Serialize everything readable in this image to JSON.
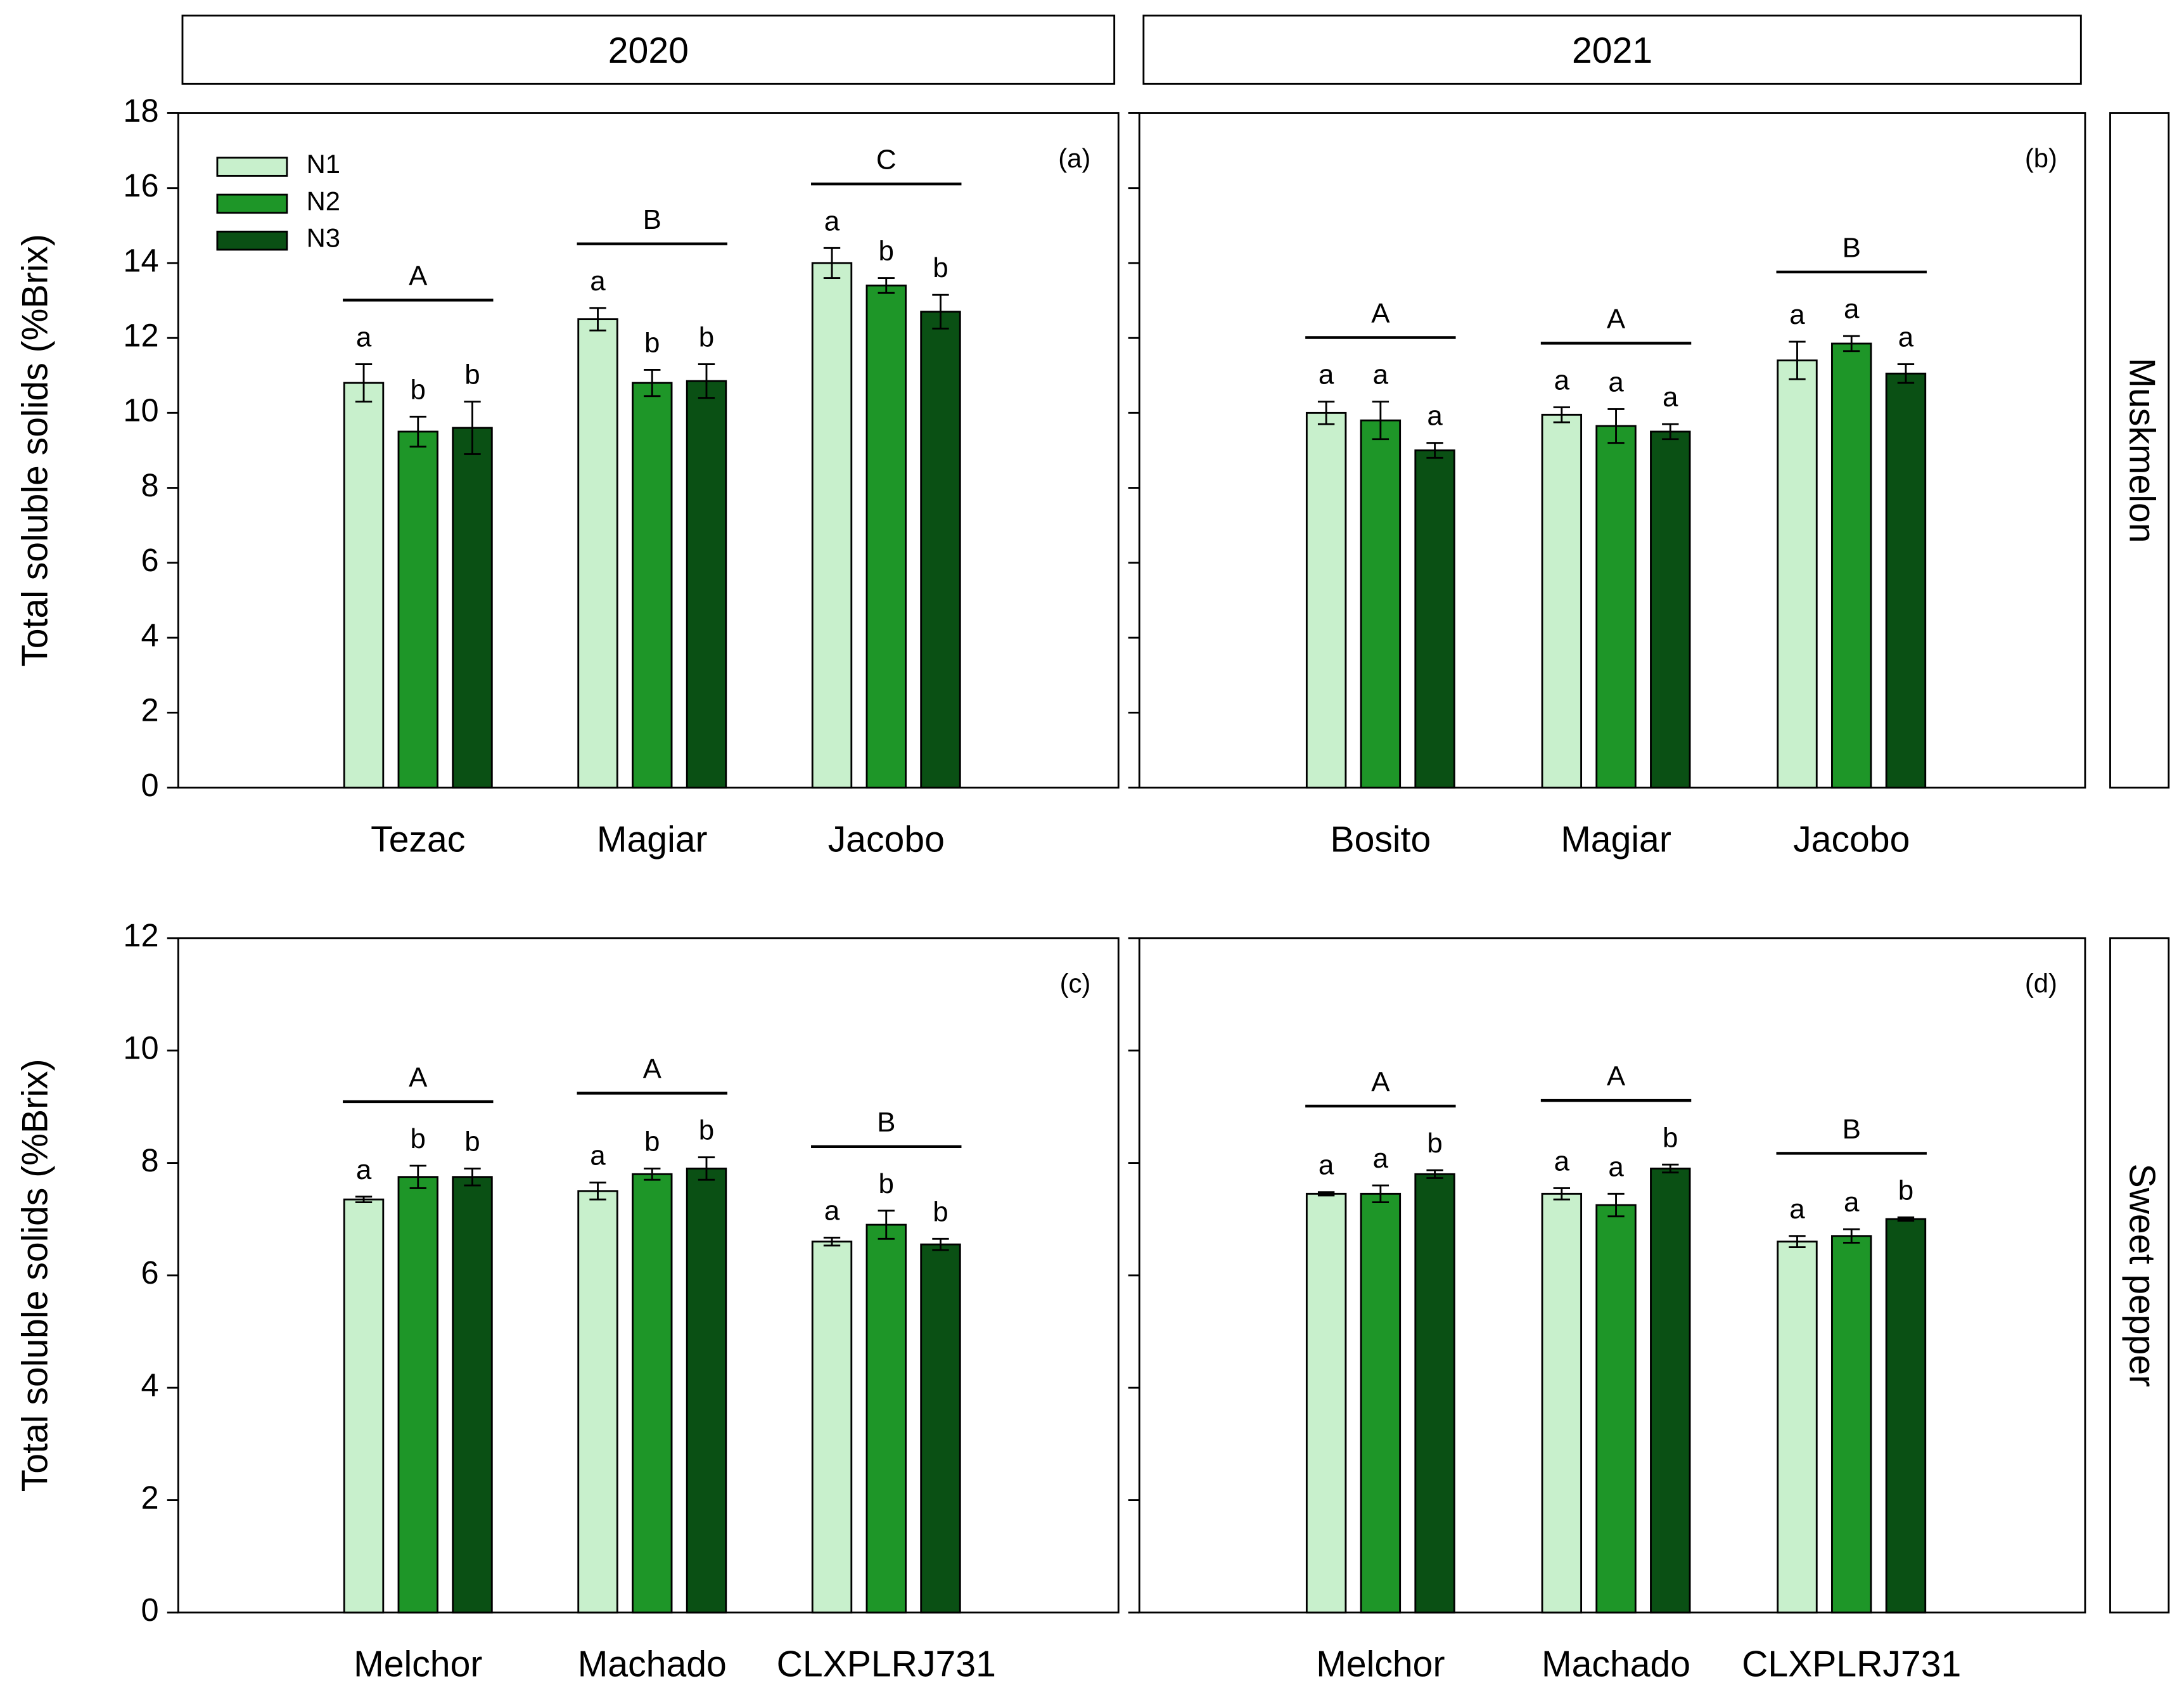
{
  "chart_data": [
    {
      "type": "bar",
      "panel_label": "(a)",
      "column_label": "2020",
      "ylabel": "Total soluble solids (%Brix)",
      "categories": [
        "Tezac",
        "Magiar",
        "Jacobo"
      ],
      "group_letters": [
        "A",
        "B",
        "C"
      ],
      "series": [
        {
          "name": "N1",
          "color": "#c8f0cc",
          "values": [
            10.8,
            12.5,
            14.0
          ],
          "errors": [
            0.5,
            0.3,
            0.4
          ],
          "letters": [
            "a",
            "a",
            "a"
          ]
        },
        {
          "name": "N2",
          "color": "#1e9628",
          "values": [
            9.5,
            10.8,
            13.4
          ],
          "errors": [
            0.4,
            0.35,
            0.2
          ],
          "letters": [
            "b",
            "b",
            "b"
          ]
        },
        {
          "name": "N3",
          "color": "#0a5014",
          "values": [
            9.6,
            10.85,
            12.7
          ],
          "errors": [
            0.7,
            0.45,
            0.45
          ],
          "letters": [
            "b",
            "b",
            "b"
          ]
        }
      ],
      "ylim": [
        0,
        18
      ],
      "yticks": [
        0,
        2,
        4,
        6,
        8,
        10,
        12,
        14,
        16,
        18
      ],
      "ytick_labels": true,
      "legend": "upper left"
    },
    {
      "type": "bar",
      "panel_label": "(b)",
      "column_label": "2021",
      "row_label": "Muskmelon",
      "categories": [
        "Bosito",
        "Magiar",
        "Jacobo"
      ],
      "group_letters": [
        "A",
        "A",
        "B"
      ],
      "series": [
        {
          "name": "N1",
          "color": "#c8f0cc",
          "values": [
            10.0,
            9.95,
            11.4
          ],
          "errors": [
            0.3,
            0.2,
            0.5
          ],
          "letters": [
            "a",
            "a",
            "a"
          ]
        },
        {
          "name": "N2",
          "color": "#1e9628",
          "values": [
            9.8,
            9.65,
            11.85
          ],
          "errors": [
            0.5,
            0.45,
            0.2
          ],
          "letters": [
            "a",
            "a",
            "a"
          ]
        },
        {
          "name": "N3",
          "color": "#0a5014",
          "values": [
            9.0,
            9.5,
            11.05
          ],
          "errors": [
            0.2,
            0.2,
            0.25
          ],
          "letters": [
            "a",
            "a",
            "a"
          ]
        }
      ],
      "ylim": [
        0,
        18
      ],
      "yticks": [
        0,
        2,
        4,
        6,
        8,
        10,
        12,
        14,
        16,
        18
      ],
      "ytick_labels": false
    },
    {
      "type": "bar",
      "panel_label": "(c)",
      "ylabel": "Total soluble solids (%Brix)",
      "categories": [
        "Melchor",
        "Machado",
        "CLXPLRJ731"
      ],
      "group_letters": [
        "A",
        "A",
        "B"
      ],
      "series": [
        {
          "name": "N1",
          "color": "#c8f0cc",
          "values": [
            7.35,
            7.5,
            6.6
          ],
          "errors": [
            0.05,
            0.15,
            0.07
          ],
          "letters": [
            "a",
            "a",
            "a"
          ]
        },
        {
          "name": "N2",
          "color": "#1e9628",
          "values": [
            7.75,
            7.8,
            6.9
          ],
          "errors": [
            0.2,
            0.1,
            0.25
          ],
          "letters": [
            "b",
            "b",
            "b"
          ]
        },
        {
          "name": "N3",
          "color": "#0a5014",
          "values": [
            7.75,
            7.9,
            6.55
          ],
          "errors": [
            0.15,
            0.2,
            0.1
          ],
          "letters": [
            "b",
            "b",
            "b"
          ]
        }
      ],
      "ylim": [
        0,
        12
      ],
      "yticks": [
        0,
        2,
        4,
        6,
        8,
        10,
        12
      ],
      "ytick_labels": true
    },
    {
      "type": "bar",
      "panel_label": "(d)",
      "row_label": "Sweet pepper",
      "categories": [
        "Melchor",
        "Machado",
        "CLXPLRJ731"
      ],
      "group_letters": [
        "A",
        "A",
        "B"
      ],
      "series": [
        {
          "name": "N1",
          "color": "#c8f0cc",
          "values": [
            7.45,
            7.45,
            6.6
          ],
          "errors": [
            0.03,
            0.1,
            0.1
          ],
          "letters": [
            "a",
            "a",
            "a"
          ]
        },
        {
          "name": "N2",
          "color": "#1e9628",
          "values": [
            7.45,
            7.25,
            6.7
          ],
          "errors": [
            0.15,
            0.2,
            0.12
          ],
          "letters": [
            "a",
            "a",
            "a"
          ]
        },
        {
          "name": "N3",
          "color": "#0a5014",
          "values": [
            7.8,
            7.9,
            7.0
          ],
          "errors": [
            0.07,
            0.07,
            0.03
          ],
          "letters": [
            "b",
            "b",
            "b"
          ]
        }
      ],
      "ylim": [
        0,
        12
      ],
      "yticks": [
        0,
        2,
        4,
        6,
        8,
        10,
        12
      ],
      "ytick_labels": false
    }
  ]
}
